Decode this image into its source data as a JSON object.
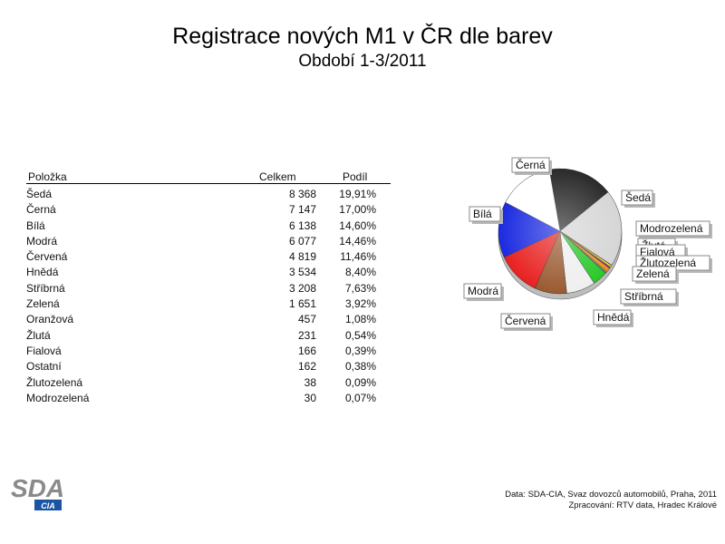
{
  "title": "Registrace nových M1 v ČR dle barev",
  "subtitle": "Období 1-3/2011",
  "table": {
    "headers": {
      "item": "Položka",
      "total": "Celkem",
      "share": "Podíl"
    },
    "rows": [
      {
        "item": "Šedá",
        "total": "8 368",
        "share": "19,91%"
      },
      {
        "item": "Černá",
        "total": "7 147",
        "share": "17,00%"
      },
      {
        "item": "Bílá",
        "total": "6 138",
        "share": "14,60%"
      },
      {
        "item": "Modrá",
        "total": "6 077",
        "share": "14,46%"
      },
      {
        "item": "Červená",
        "total": "4 819",
        "share": "11,46%"
      },
      {
        "item": "Hnědá",
        "total": "3 534",
        "share": "8,40%"
      },
      {
        "item": "Stříbrná",
        "total": "3 208",
        "share": "7,63%"
      },
      {
        "item": "Zelená",
        "total": "1 651",
        "share": "3,92%"
      },
      {
        "item": "Oranžová",
        "total": "457",
        "share": "1,08%"
      },
      {
        "item": "Žlutá",
        "total": "231",
        "share": "0,54%"
      },
      {
        "item": "Fialová",
        "total": "166",
        "share": "0,39%"
      },
      {
        "item": "Ostatní",
        "total": "162",
        "share": "0,38%"
      },
      {
        "item": "Žlutozelená",
        "total": "38",
        "share": "0,09%"
      },
      {
        "item": "Modrozelená",
        "total": "30",
        "share": "0,07%"
      }
    ]
  },
  "chart_data": {
    "type": "pie",
    "title": "",
    "slices": [
      {
        "label": "Černá",
        "value": 7147,
        "color": "#2a2a2a",
        "shown_label": "Černá"
      },
      {
        "label": "Šedá",
        "value": 8368,
        "color": "#d6d6d6",
        "shown_label": "Šedá"
      },
      {
        "label": "Modrozelená",
        "value": 30,
        "color": "#3a8a8a",
        "shown_label": "Modrozelená"
      },
      {
        "label": "Žlutá",
        "value": 231,
        "color": "#f0e020",
        "shown_label": "Žlutá"
      },
      {
        "label": "Fialová",
        "value": 166,
        "color": "#8a3aa0",
        "shown_label": "Fialová"
      },
      {
        "label": "Oranžová",
        "value": 457,
        "color": "#f0901e",
        "shown_label": ""
      },
      {
        "label": "Ostatní",
        "value": 162,
        "color": "#9a9a9a",
        "shown_label": ""
      },
      {
        "label": "Žlutozelená",
        "value": 38,
        "color": "#b8e040",
        "shown_label": "Žlutozelená"
      },
      {
        "label": "Zelená",
        "value": 1651,
        "color": "#28c828",
        "shown_label": "Zelená"
      },
      {
        "label": "Stříbrná",
        "value": 3208,
        "color": "#efefef",
        "shown_label": "Stříbrná"
      },
      {
        "label": "Hnědá",
        "value": 3534,
        "color": "#9a5a30",
        "shown_label": "Hnědá"
      },
      {
        "label": "Červená",
        "value": 4819,
        "color": "#e82020",
        "shown_label": "Červená"
      },
      {
        "label": "Modrá",
        "value": 6077,
        "color": "#1a2ae0",
        "shown_label": "Modrá"
      },
      {
        "label": "Bílá",
        "value": 6138,
        "color": "#ffffff",
        "shown_label": "Bílá"
      }
    ]
  },
  "footer": {
    "source": "Data: SDA-CIA, Svaz dovozců automobilů, Praha, 2011",
    "processed": "Zpracování: RTV data, Hradec Králové"
  },
  "logo": {
    "main": "SDA",
    "sub": "CIA",
    "color": "#1a55a5"
  }
}
